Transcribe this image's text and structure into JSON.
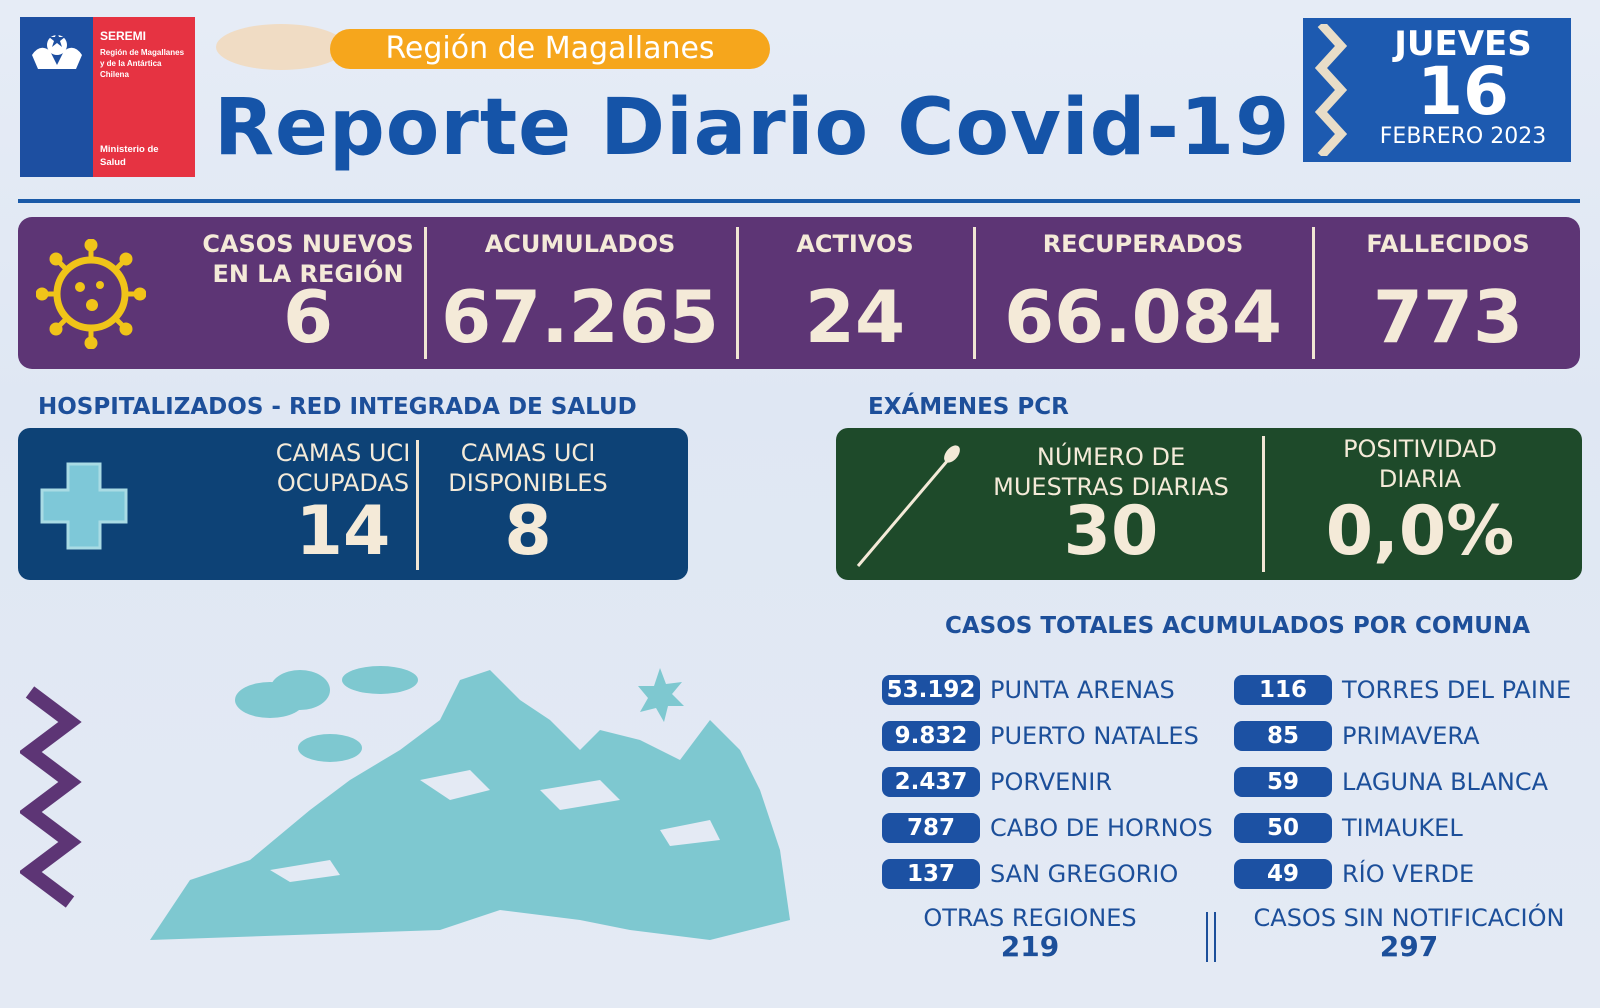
{
  "logo": {
    "seremi": "SEREMI",
    "region_lines": [
      "Región de Magallanes",
      "y de la Antártica",
      "Chilena"
    ],
    "ministerio_lines": [
      "Ministerio de",
      "Salud"
    ]
  },
  "header": {
    "region": "Región de Magallanes",
    "title": "Reporte Diario Covid-19"
  },
  "date": {
    "weekday": "JUEVES",
    "day": "16",
    "month_year": "FEBRERO 2023"
  },
  "stats": [
    {
      "label_lines": [
        "CASOS NUEVOS",
        "EN LA REGIÓN"
      ],
      "value": "6"
    },
    {
      "label_lines": [
        "ACUMULADOS"
      ],
      "value": "67.265"
    },
    {
      "label_lines": [
        "ACTIVOS"
      ],
      "value": "24"
    },
    {
      "label_lines": [
        "RECUPERADOS"
      ],
      "value": "66.084"
    },
    {
      "label_lines": [
        "FALLECIDOS"
      ],
      "value": "773"
    }
  ],
  "hospital": {
    "section_title": "HOSPITALIZADOS - RED INTEGRADA DE SALUD",
    "ocupadas": {
      "label_lines": [
        "CAMAS UCI",
        "OCUPADAS"
      ],
      "value": "14"
    },
    "disponibles": {
      "label_lines": [
        "CAMAS UCI",
        "DISPONIBLES"
      ],
      "value": "8"
    }
  },
  "pcr": {
    "section_title": "EXÁMENES PCR",
    "muestras": {
      "label_lines": [
        "NÚMERO DE",
        "MUESTRAS DIARIAS"
      ],
      "value": "30"
    },
    "positividad": {
      "label_lines": [
        "POSITIVIDAD",
        "DIARIA"
      ],
      "value": "0,0%"
    }
  },
  "comunas": {
    "title": "CASOS TOTALES ACUMULADOS POR COMUNA",
    "left": [
      {
        "value": "53.192",
        "name": "PUNTA ARENAS"
      },
      {
        "value": "9.832",
        "name": "PUERTO NATALES"
      },
      {
        "value": "2.437",
        "name": "PORVENIR"
      },
      {
        "value": "787",
        "name": "CABO DE HORNOS"
      },
      {
        "value": "137",
        "name": "SAN GREGORIO"
      }
    ],
    "right": [
      {
        "value": "116",
        "name": "TORRES DEL PAINE"
      },
      {
        "value": "85",
        "name": "PRIMAVERA"
      },
      {
        "value": "59",
        "name": "LAGUNA BLANCA"
      },
      {
        "value": "50",
        "name": "TIMAUKEL"
      },
      {
        "value": "49",
        "name": "RÍO VERDE"
      }
    ],
    "otras_regiones": {
      "label": "OTRAS REGIONES",
      "value": "219"
    },
    "sin_notificacion": {
      "label": "CASOS SIN NOTIFICACIÓN",
      "value": "297"
    }
  },
  "colors": {
    "brand_blue": "#1554a8",
    "purple": "#5d3575",
    "navy": "#0d4276",
    "green": "#1e4a2a",
    "orange": "#f6a61c",
    "red": "#e63342",
    "cream": "#f4ead8",
    "teal": "#7ec8d0"
  }
}
